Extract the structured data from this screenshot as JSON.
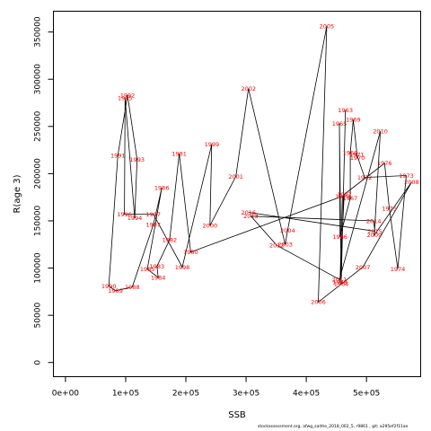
{
  "chart_data": {
    "type": "line",
    "xlabel": "SSB",
    "ylabel": "R(age 3)",
    "xlim": [
      -20000,
      590000
    ],
    "ylim": [
      -15000,
      372000
    ],
    "x_ticks": [
      0,
      100000,
      200000,
      300000,
      400000,
      500000
    ],
    "x_tick_labels": [
      "0e+00",
      "1e+05",
      "2e+05",
      "3e+05",
      "4e+05",
      "5e+05"
    ],
    "y_ticks": [
      0,
      50000,
      100000,
      150000,
      200000,
      250000,
      300000,
      350000
    ],
    "y_tick_labels": [
      "0",
      "50000",
      "100000",
      "150000",
      "200000",
      "250000",
      "300000",
      "350000"
    ],
    "line_color": "#000000",
    "label_color": "#ff0000",
    "points": [
      {
        "year": "1963",
        "x": 465000,
        "y": 267000
      },
      {
        "year": "1964",
        "x": 458000,
        "y": 83000
      },
      {
        "year": "1965",
        "x": 455000,
        "y": 253000
      },
      {
        "year": "1966",
        "x": 456000,
        "y": 133000
      },
      {
        "year": "1967",
        "x": 473000,
        "y": 174000
      },
      {
        "year": "1968",
        "x": 473000,
        "y": 222000
      },
      {
        "year": "1969",
        "x": 478000,
        "y": 257000
      },
      {
        "year": "1970",
        "x": 485000,
        "y": 217000
      },
      {
        "year": "1971",
        "x": 484000,
        "y": 220000
      },
      {
        "year": "1972",
        "x": 497000,
        "y": 196000
      },
      {
        "year": "1973",
        "x": 566000,
        "y": 198000
      },
      {
        "year": "1974",
        "x": 552000,
        "y": 99000
      },
      {
        "year": "1975",
        "x": 538000,
        "y": 163000
      },
      {
        "year": "1976",
        "x": 530000,
        "y": 211000
      },
      {
        "year": "1977",
        "x": 463000,
        "y": 178000
      },
      {
        "year": "1978",
        "x": 456000,
        "y": 85000
      },
      {
        "year": "1979",
        "x": 460000,
        "y": 176000
      },
      {
        "year": "1980",
        "x": 208000,
        "y": 117000
      },
      {
        "year": "1981",
        "x": 189000,
        "y": 221000
      },
      {
        "year": "1982",
        "x": 173000,
        "y": 130000
      },
      {
        "year": "1983",
        "x": 152000,
        "y": 102000
      },
      {
        "year": "1984",
        "x": 154000,
        "y": 90000
      },
      {
        "year": "1985",
        "x": 136000,
        "y": 99000
      },
      {
        "year": "1986",
        "x": 160000,
        "y": 185000
      },
      {
        "year": "1987",
        "x": 146000,
        "y": 146000
      },
      {
        "year": "1988",
        "x": 111000,
        "y": 80000
      },
      {
        "year": "1989",
        "x": 83000,
        "y": 76000
      },
      {
        "year": "1990",
        "x": 72000,
        "y": 81000
      },
      {
        "year": "1991",
        "x": 87000,
        "y": 219000
      },
      {
        "year": "1992",
        "x": 103000,
        "y": 283000
      },
      {
        "year": "1993",
        "x": 119000,
        "y": 215000
      },
      {
        "year": "1994",
        "x": 115000,
        "y": 153000
      },
      {
        "year": "1995",
        "x": 99000,
        "y": 280000
      },
      {
        "year": "1996",
        "x": 98000,
        "y": 157000
      },
      {
        "year": "1997",
        "x": 146000,
        "y": 157000
      },
      {
        "year": "1998",
        "x": 194000,
        "y": 101000
      },
      {
        "year": "1999",
        "x": 243000,
        "y": 231000
      },
      {
        "year": "2000",
        "x": 240000,
        "y": 145000
      },
      {
        "year": "2001",
        "x": 283000,
        "y": 197000
      },
      {
        "year": "2002",
        "x": 304000,
        "y": 290000
      },
      {
        "year": "2003",
        "x": 365000,
        "y": 125000
      },
      {
        "year": "2004",
        "x": 369000,
        "y": 140000
      },
      {
        "year": "2005",
        "x": 434000,
        "y": 356000
      },
      {
        "year": "2006",
        "x": 420000,
        "y": 64000
      },
      {
        "year": "2007",
        "x": 494000,
        "y": 101000
      },
      {
        "year": "2008",
        "x": 575000,
        "y": 191000
      },
      {
        "year": "2009",
        "x": 513000,
        "y": 135000
      },
      {
        "year": "2010",
        "x": 523000,
        "y": 245000
      },
      {
        "year": "2011",
        "x": 455000,
        "y": 88000
      },
      {
        "year": "2012",
        "x": 351000,
        "y": 124000
      },
      {
        "year": "2013",
        "x": 308000,
        "y": 155000
      },
      {
        "year": "2014",
        "x": 512000,
        "y": 150000
      },
      {
        "year": "2015",
        "x": 514000,
        "y": 139000
      },
      {
        "year": "2016",
        "x": 304000,
        "y": 159000
      }
    ],
    "footnote": "stockassessment.org, afwg_saithe_2018_002_5, r9861 , git: a295ef2f11ae"
  }
}
